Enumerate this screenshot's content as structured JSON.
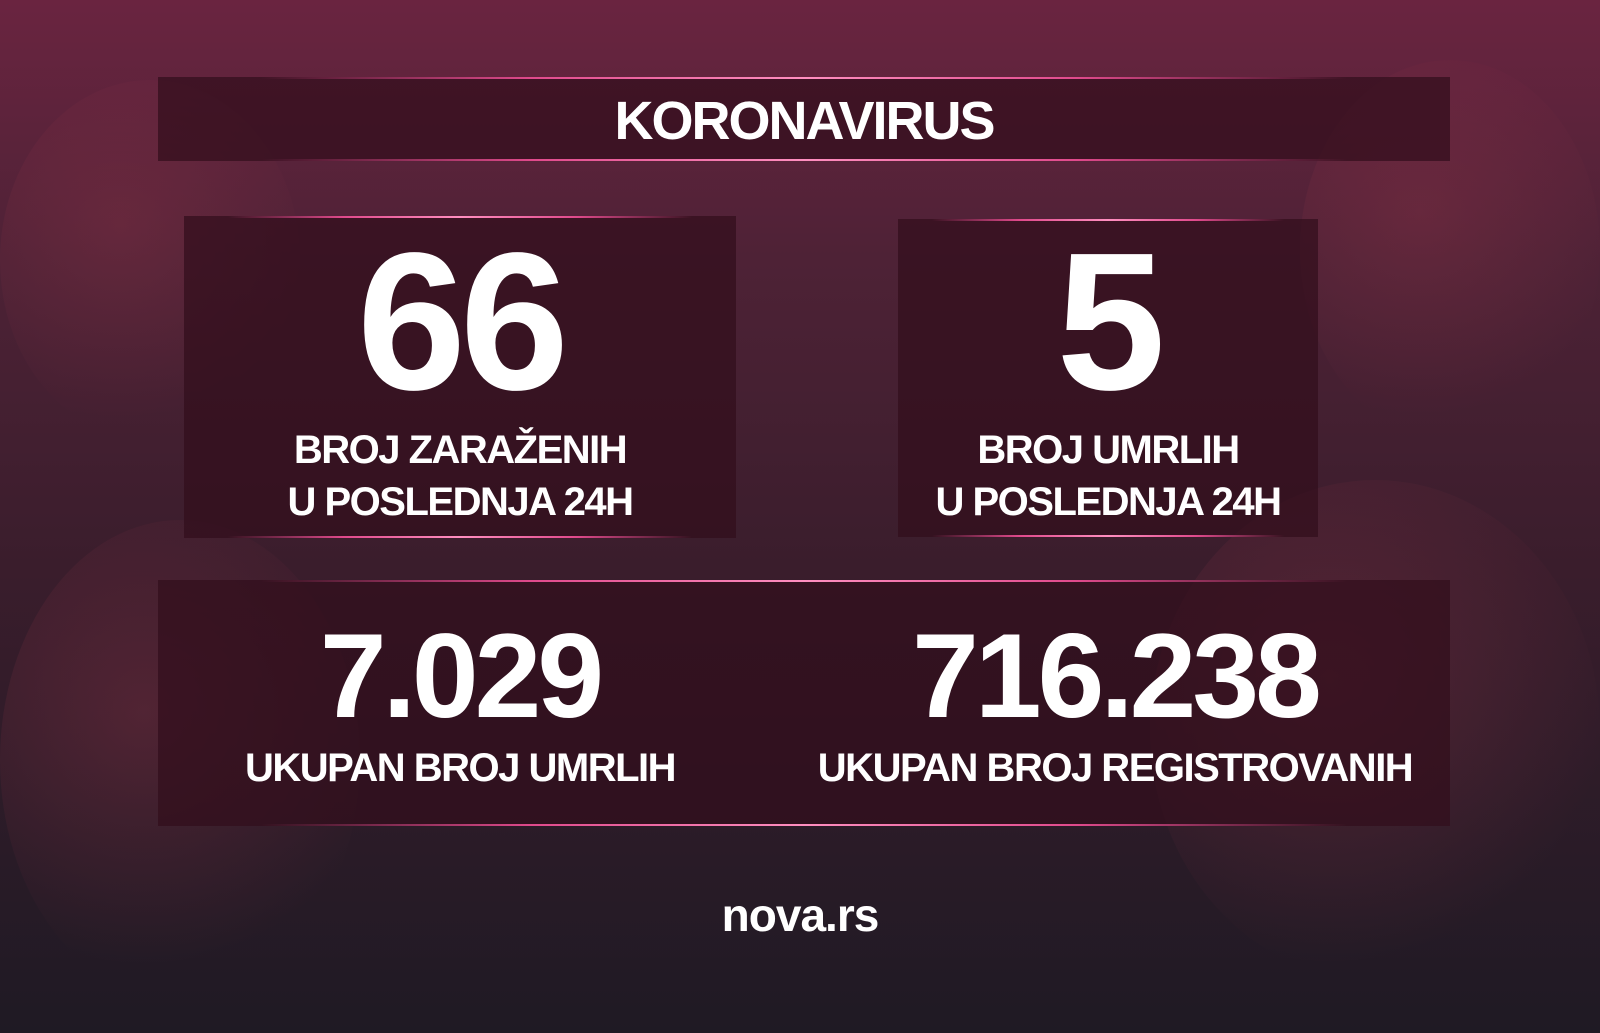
{
  "title": "KORONAVIRUS",
  "stats": {
    "new_cases": {
      "value": "66",
      "label_line1": "BROJ ZARAŽENIH",
      "label_line2": "U POSLEDNJA 24H"
    },
    "new_deaths": {
      "value": "5",
      "label_line1": "BROJ UMRLIH",
      "label_line2": "U POSLEDNJA 24H"
    },
    "total_deaths": {
      "value": "7.029",
      "label": "UKUPAN BROJ UMRLIH"
    },
    "total_registered": {
      "value": "716.238",
      "label": "UKUPAN BROJ REGISTROVANIH"
    }
  },
  "brand": "nova.rs",
  "colors": {
    "accent_line": "#e04a8c",
    "panel": "#320e1c",
    "background": "#4e2236"
  }
}
